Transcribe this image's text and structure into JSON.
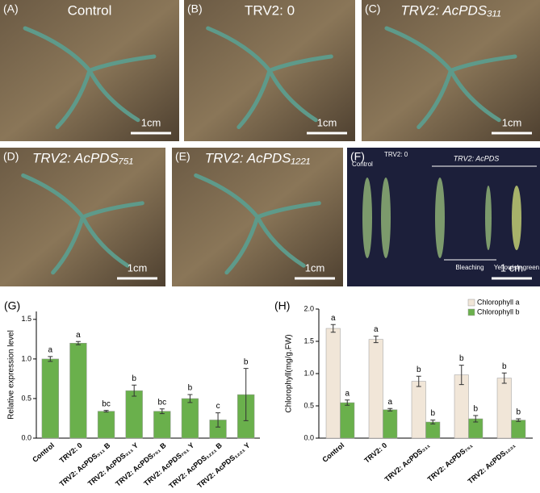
{
  "panels": [
    {
      "label": "(A)",
      "title": "Control",
      "scale": "1cm"
    },
    {
      "label": "(B)",
      "title": "TRV2: 0",
      "scale": "1cm"
    },
    {
      "label": "(C)",
      "title": "TRV2: AcPDS₃₁₁",
      "scale": "1cm"
    },
    {
      "label": "(D)",
      "title": "TRV2: AcPDS₇₅₁",
      "scale": "1cm"
    },
    {
      "label": "(E)",
      "title": "TRV2: AcPDS₁₂₂₁",
      "scale": "1cm"
    },
    {
      "label": "(F)",
      "title": "TRV2: AcPDS",
      "scale": "1 cm",
      "control": "Control",
      "empty": "TRV2: 0",
      "bleaching": "Bleaching",
      "yellow": "Yellowish-green"
    }
  ],
  "chart_data": [
    {
      "type": "bar",
      "panel": "(G)",
      "ylabel": "Relative expression level",
      "categories": [
        "Control",
        "TRV2: 0",
        "TRV2: AcPDS₃₁₁ B",
        "TRV2: AcPDS₃₁₁ Y",
        "TRV2: AcPDS₇₅₁ B",
        "TRV2: AcPDS₇₅₁ Y",
        "TRV2: AcPDS₁₂₂₁ B",
        "TRV2: AcPDS₁₂₂₁ Y"
      ],
      "series": [
        {
          "name": "Relative expression",
          "color": "#6ab04c",
          "values": [
            1.0,
            1.2,
            0.34,
            0.6,
            0.34,
            0.5,
            0.23,
            0.55
          ],
          "errors": [
            0.03,
            0.02,
            0.01,
            0.07,
            0.03,
            0.05,
            0.09,
            0.33
          ],
          "letters": [
            "a",
            "a",
            "bc",
            "b",
            "bc",
            "b",
            "c",
            "b"
          ]
        }
      ],
      "ylim": [
        0,
        1.6
      ],
      "yticks": [
        {
          "value": 0,
          "label": "0.0"
        },
        {
          "value": 0.5,
          "label": "0.5"
        },
        {
          "value": 1,
          "label": "1.0"
        },
        {
          "value": 1.5,
          "label": "1.5"
        }
      ],
      "legend": false
    },
    {
      "type": "bar",
      "panel": "(H)",
      "ylabel": "Chlorophyll(mg/g.FW)",
      "categories": [
        "Control",
        "TRV2: 0",
        "TRV2: AcPDS₃₁₁",
        "TRV2: AcPDS₇₅₁",
        "TRV2: AcPDS₁₂₂₁"
      ],
      "series": [
        {
          "name": "Chlorophyll a",
          "color": "#f1e6d8",
          "values": [
            1.7,
            1.53,
            0.88,
            0.98,
            0.93
          ],
          "errors": [
            0.06,
            0.05,
            0.08,
            0.15,
            0.08
          ],
          "letters": [
            "a",
            "a",
            "b",
            "b",
            "b"
          ]
        },
        {
          "name": "Chlorophyll b",
          "color": "#6ab04c",
          "values": [
            0.55,
            0.44,
            0.25,
            0.3,
            0.28
          ],
          "errors": [
            0.04,
            0.02,
            0.03,
            0.05,
            0.02
          ],
          "letters": [
            "a",
            "a",
            "b",
            "b",
            "b"
          ]
        }
      ],
      "ylim": [
        0,
        2
      ],
      "yticks": [
        {
          "value": 0,
          "label": "0.0"
        },
        {
          "value": 0.5,
          "label": "0.5"
        },
        {
          "value": 1,
          "label": "1.0"
        },
        {
          "value": 1.5,
          "label": "1.5"
        },
        {
          "value": 2,
          "label": "2.0"
        }
      ],
      "legend": "upper right"
    }
  ]
}
